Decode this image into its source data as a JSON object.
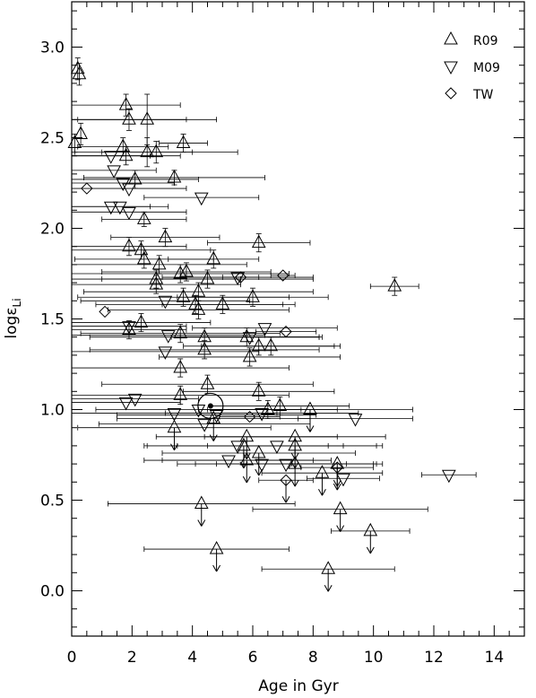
{
  "chart_data": {
    "type": "scatter",
    "xlabel": "Age in Gyr",
    "ylabel": "logε",
    "ylabel_sub": "Li",
    "xlim": [
      0,
      15
    ],
    "ylim": [
      -0.25,
      3.25
    ],
    "xticks": [
      0,
      2,
      4,
      6,
      8,
      10,
      12,
      14
    ],
    "xtick_labels": [
      "0",
      "2",
      "4",
      "6",
      "8",
      "10",
      "12",
      "14"
    ],
    "yticks": [
      0.0,
      0.5,
      1.0,
      1.5,
      2.0,
      2.5,
      3.0
    ],
    "ytick_labels": [
      "0.0",
      "0.5",
      "1.0",
      "1.5",
      "2.0",
      "2.5",
      "3.0"
    ],
    "legend_position": "top-right",
    "grid": false,
    "sun": {
      "x": 4.6,
      "y": 1.02
    },
    "series": [
      {
        "name": "R09",
        "marker": "triangle-up",
        "points": [
          {
            "x": 0.2,
            "y": 2.88,
            "yerr": 0.06
          },
          {
            "x": 0.25,
            "y": 2.85,
            "yerr": 0.06
          },
          {
            "x": 0.1,
            "y": 2.47,
            "yerr": 0.05
          },
          {
            "x": 0.3,
            "y": 2.52,
            "yerr": 0.06
          },
          {
            "x": 1.8,
            "y": 2.68,
            "yerr": 0.06,
            "xerr": 1.8
          },
          {
            "x": 1.9,
            "y": 2.6,
            "yerr": 0.06,
            "xerr": 1.9
          },
          {
            "x": 2.5,
            "y": 2.6,
            "yerr": 0.14,
            "xerr": 2.3
          },
          {
            "x": 1.7,
            "y": 2.45,
            "yerr": 0.05,
            "xerr": 1.5
          },
          {
            "x": 1.8,
            "y": 2.4,
            "yerr": 0.05,
            "xerr": 1.8
          },
          {
            "x": 2.5,
            "y": 2.42,
            "yerr": 0.08,
            "xerr": 1.5
          },
          {
            "x": 2.8,
            "y": 2.42,
            "yerr": 0.06,
            "xerr": 2.7
          },
          {
            "x": 3.7,
            "y": 2.47,
            "yerr": 0.05,
            "xerr": 0.8
          },
          {
            "x": 3.4,
            "y": 2.28,
            "yerr": 0.04,
            "xerr": 3.0
          },
          {
            "x": 2.1,
            "y": 2.27,
            "yerr": 0.05,
            "xerr": 2.1
          },
          {
            "x": 2.4,
            "y": 2.05,
            "yerr": 0.04,
            "xerr": 1.4
          },
          {
            "x": 3.1,
            "y": 1.95,
            "yerr": 0.05,
            "xerr": 1.8
          },
          {
            "x": 1.9,
            "y": 1.9,
            "yerr": 0.05,
            "xerr": 1.9
          },
          {
            "x": 2.3,
            "y": 1.88,
            "yerr": 0.05,
            "xerr": 2.3
          },
          {
            "x": 2.4,
            "y": 1.83,
            "yerr": 0.05,
            "xerr": 2.3
          },
          {
            "x": 2.9,
            "y": 1.8,
            "yerr": 0.05,
            "xerr": 2.9
          },
          {
            "x": 2.8,
            "y": 1.72,
            "yerr": 0.05,
            "xerr": 2.8
          },
          {
            "x": 3.8,
            "y": 1.76,
            "yerr": 0.05,
            "xerr": 2.8
          },
          {
            "x": 4.7,
            "y": 1.83,
            "yerr": 0.05,
            "xerr": 1.5
          },
          {
            "x": 6.2,
            "y": 1.92,
            "yerr": 0.05,
            "xerr": 1.7
          },
          {
            "x": 3.6,
            "y": 1.75,
            "yerr": 0.05,
            "xerr": 3.6
          },
          {
            "x": 4.5,
            "y": 1.72,
            "yerr": 0.05,
            "xerr": 3.5
          },
          {
            "x": 2.8,
            "y": 1.69,
            "yerr": 0.05,
            "xerr": 2.8
          },
          {
            "x": 3.7,
            "y": 1.62,
            "yerr": 0.05,
            "xerr": 3.5
          },
          {
            "x": 4.2,
            "y": 1.65,
            "yerr": 0.05,
            "xerr": 3.8
          },
          {
            "x": 4.1,
            "y": 1.58,
            "yerr": 0.05,
            "xerr": 3.3
          },
          {
            "x": 4.2,
            "y": 1.55,
            "yerr": 0.05,
            "xerr": 3.0
          },
          {
            "x": 5.0,
            "y": 1.58,
            "yerr": 0.05,
            "xerr": 2.0
          },
          {
            "x": 6.0,
            "y": 1.62,
            "yerr": 0.05,
            "xerr": 2.5
          },
          {
            "x": 10.7,
            "y": 1.68,
            "yerr": 0.05,
            "xerr": 0.8
          },
          {
            "x": 2.3,
            "y": 1.48,
            "yerr": 0.05,
            "xerr": 2.3
          },
          {
            "x": 1.9,
            "y": 1.44,
            "yerr": 0.05,
            "xerr": 1.9
          },
          {
            "x": 3.6,
            "y": 1.42,
            "yerr": 0.05,
            "xerr": 3.3
          },
          {
            "x": 4.4,
            "y": 1.4,
            "yerr": 0.05,
            "xerr": 3.8
          },
          {
            "x": 5.8,
            "y": 1.4,
            "yerr": 0.05,
            "xerr": 2.5
          },
          {
            "x": 6.2,
            "y": 1.35,
            "yerr": 0.05,
            "xerr": 2.5
          },
          {
            "x": 6.6,
            "y": 1.35,
            "yerr": 0.05,
            "xerr": 2.3
          },
          {
            "x": 4.4,
            "y": 1.33,
            "yerr": 0.05,
            "xerr": 3.8
          },
          {
            "x": 5.9,
            "y": 1.29,
            "yerr": 0.05,
            "xerr": 3.0
          },
          {
            "x": 3.6,
            "y": 1.23,
            "yerr": 0.05,
            "xerr": 3.6
          },
          {
            "x": 3.6,
            "y": 1.08,
            "yerr": 0.05,
            "xerr": 3.6
          },
          {
            "x": 6.2,
            "y": 1.1,
            "yerr": 0.05,
            "xerr": 2.5
          },
          {
            "x": 4.5,
            "y": 1.14,
            "yerr": 0.05,
            "xerr": 3.5
          },
          {
            "x": 6.9,
            "y": 1.02,
            "yerr": 0.05,
            "xerr": 2.3
          },
          {
            "x": 6.5,
            "y": 1.0,
            "yerr": 0.05,
            "xerr": 2.3
          },
          {
            "x": 7.4,
            "y": 0.85,
            "ul": true,
            "xerr": 3.0
          },
          {
            "x": 7.4,
            "y": 0.8,
            "ul": true,
            "xerr": 2.9
          },
          {
            "x": 5.8,
            "y": 0.85,
            "ul": true,
            "xerr": 3.0
          },
          {
            "x": 5.7,
            "y": 0.8,
            "ul": true,
            "xerr": 3.3
          },
          {
            "x": 6.2,
            "y": 0.76,
            "ul": true,
            "xerr": 3.2
          },
          {
            "x": 4.7,
            "y": 0.95,
            "ul": true,
            "xerr": 3.2
          },
          {
            "x": 7.4,
            "y": 0.7,
            "ul": true,
            "xerr": 2.6
          },
          {
            "x": 5.8,
            "y": 0.72,
            "ul": true,
            "xerr": 2.8
          },
          {
            "x": 8.3,
            "y": 0.65,
            "ul": true,
            "xerr": 2.0
          },
          {
            "x": 8.8,
            "y": 0.7,
            "ul": true,
            "xerr": 1.5
          },
          {
            "x": 7.9,
            "y": 1.0,
            "ul": true,
            "xerr": 3.4
          },
          {
            "x": 3.4,
            "y": 0.9,
            "ul": true,
            "xerr": 3.2
          },
          {
            "x": 4.3,
            "y": 0.48,
            "ul": true,
            "xerr": 3.1
          },
          {
            "x": 8.9,
            "y": 0.45,
            "ul": true,
            "xerr": 2.9
          },
          {
            "x": 9.9,
            "y": 0.33,
            "ul": true,
            "xerr": 1.3
          },
          {
            "x": 4.8,
            "y": 0.23,
            "ul": true,
            "xerr": 2.4
          },
          {
            "x": 8.5,
            "y": 0.12,
            "ul": true,
            "xerr": 2.2
          }
        ]
      },
      {
        "name": "M09",
        "marker": "triangle-down",
        "points": [
          {
            "x": 1.3,
            "y": 2.4,
            "xerr": 1.3
          },
          {
            "x": 1.4,
            "y": 2.32,
            "xerr": 1.4
          },
          {
            "x": 1.7,
            "y": 2.25,
            "xerr": 1.7
          },
          {
            "x": 1.9,
            "y": 2.22,
            "xerr": 1.9
          },
          {
            "x": 1.3,
            "y": 2.12,
            "xerr": 1.3
          },
          {
            "x": 1.6,
            "y": 2.12,
            "xerr": 1.6
          },
          {
            "x": 1.9,
            "y": 2.09,
            "xerr": 1.9
          },
          {
            "x": 4.3,
            "y": 2.17,
            "xerr": 1.9
          },
          {
            "x": 5.5,
            "y": 1.73,
            "xerr": 2.5
          },
          {
            "x": 3.1,
            "y": 1.6,
            "xerr": 2.8
          },
          {
            "x": 1.9,
            "y": 1.46,
            "xerr": 1.9
          },
          {
            "x": 6.4,
            "y": 1.45,
            "xerr": 2.4
          },
          {
            "x": 3.2,
            "y": 1.41,
            "xerr": 3.2
          },
          {
            "x": 5.9,
            "y": 1.4,
            "xerr": 2.3
          },
          {
            "x": 3.1,
            "y": 1.32,
            "xerr": 3.1
          },
          {
            "x": 1.8,
            "y": 1.04,
            "xerr": 1.8
          },
          {
            "x": 2.1,
            "y": 1.06,
            "xerr": 2.1
          },
          {
            "x": 4.2,
            "y": 1.0,
            "xerr": 3.4
          },
          {
            "x": 4.8,
            "y": 0.97,
            "xerr": 3.3
          },
          {
            "x": 6.3,
            "y": 0.98,
            "xerr": 3.2
          },
          {
            "x": 3.4,
            "y": 0.98,
            "xerr": 3.4
          },
          {
            "x": 4.4,
            "y": 0.92,
            "xerr": 3.5
          },
          {
            "x": 9.4,
            "y": 0.95,
            "xerr": 1.9
          },
          {
            "x": 5.5,
            "y": 0.8,
            "xerr": 3.0
          },
          {
            "x": 6.8,
            "y": 0.8,
            "xerr": 3.3
          },
          {
            "x": 5.2,
            "y": 0.72,
            "xerr": 2.8
          },
          {
            "x": 6.3,
            "y": 0.7,
            "xerr": 2.8
          },
          {
            "x": 7.1,
            "y": 0.7,
            "xerr": 3.0
          },
          {
            "x": 9.0,
            "y": 0.62,
            "xerr": 1.2
          },
          {
            "x": 12.5,
            "y": 0.64,
            "xerr": 0.9
          }
        ]
      },
      {
        "name": "TW",
        "marker": "diamond",
        "points": [
          {
            "x": 0.5,
            "y": 2.22
          },
          {
            "x": 1.1,
            "y": 1.54
          },
          {
            "x": 5.6,
            "y": 1.73,
            "xerr": 0.6
          },
          {
            "x": 7.0,
            "y": 1.74,
            "xerr": 0.4
          },
          {
            "x": 7.1,
            "y": 1.43,
            "xerr": 1.0
          },
          {
            "x": 5.9,
            "y": 0.96,
            "xerr": 1.0
          },
          {
            "x": 7.1,
            "y": 0.61,
            "ul": true,
            "xerr": 0.9
          },
          {
            "x": 8.8,
            "y": 0.68,
            "ul": true,
            "xerr": 1.2
          }
        ]
      }
    ]
  }
}
